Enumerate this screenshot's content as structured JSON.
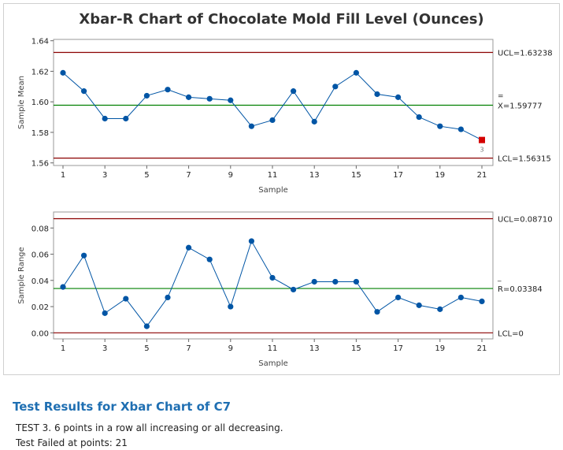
{
  "chart_data": [
    {
      "type": "line",
      "title": "Xbar-R Chart of Chocolate Mold Fill Level (Ounces)",
      "xlabel": "Sample",
      "ylabel": "Sample Mean",
      "x": [
        1,
        2,
        3,
        4,
        5,
        6,
        7,
        8,
        9,
        10,
        11,
        12,
        13,
        14,
        15,
        16,
        17,
        18,
        19,
        20,
        21
      ],
      "values": [
        1.619,
        1.607,
        1.589,
        1.589,
        1.604,
        1.608,
        1.603,
        1.602,
        1.601,
        1.584,
        1.588,
        1.607,
        1.587,
        1.61,
        1.619,
        1.605,
        1.603,
        1.59,
        1.584,
        1.582,
        1.575
      ],
      "ylim": [
        1.56,
        1.64
      ],
      "yticks": [
        1.56,
        1.58,
        1.6,
        1.62,
        1.64
      ],
      "yticklabels": [
        "1.56",
        "1.58",
        "1.60",
        "1.62",
        "1.64"
      ],
      "xticks": [
        1,
        3,
        5,
        7,
        9,
        11,
        13,
        15,
        17,
        19,
        21
      ],
      "ucl": 1.63238,
      "center": 1.59777,
      "lcl": 1.56315,
      "ucl_label": "UCL=1.63238",
      "center_label": "X=1.59777",
      "center_bar": "=",
      "lcl_label": "LCL=1.56315",
      "flagged": [
        {
          "x": 21,
          "test": "3"
        }
      ],
      "colors": {
        "series": "#0055a5",
        "limits": "#8b0000",
        "center": "#008000",
        "flag": "#d40000"
      }
    },
    {
      "type": "line",
      "xlabel": "Sample",
      "ylabel": "Sample Range",
      "x": [
        1,
        2,
        3,
        4,
        5,
        6,
        7,
        8,
        9,
        10,
        11,
        12,
        13,
        14,
        15,
        16,
        17,
        18,
        19,
        20,
        21
      ],
      "values": [
        0.035,
        0.059,
        0.015,
        0.026,
        0.005,
        0.027,
        0.065,
        0.056,
        0.02,
        0.07,
        0.042,
        0.033,
        0.039,
        0.039,
        0.039,
        0.016,
        0.027,
        0.021,
        0.018,
        0.027,
        0.024
      ],
      "ylim": [
        0,
        0.09
      ],
      "yticks": [
        0,
        0.02,
        0.04,
        0.06,
        0.08
      ],
      "yticklabels": [
        "0.00",
        "0.02",
        "0.04",
        "0.06",
        "0.08"
      ],
      "xticks": [
        1,
        3,
        5,
        7,
        9,
        11,
        13,
        15,
        17,
        19,
        21
      ],
      "ucl": 0.0871,
      "center": 0.03384,
      "lcl": 0,
      "ucl_label": "UCL=0.08710",
      "center_label": "R=0.03384",
      "center_bar": "_",
      "lcl_label": "LCL=0",
      "flagged": [],
      "colors": {
        "series": "#0055a5",
        "limits": "#8b0000",
        "center": "#008000"
      }
    }
  ],
  "results": {
    "title": "Test Results for Xbar Chart of C7",
    "line1": "TEST 3. 6 points in a row all increasing or all decreasing.",
    "line2": "Test Failed at points:  21"
  }
}
